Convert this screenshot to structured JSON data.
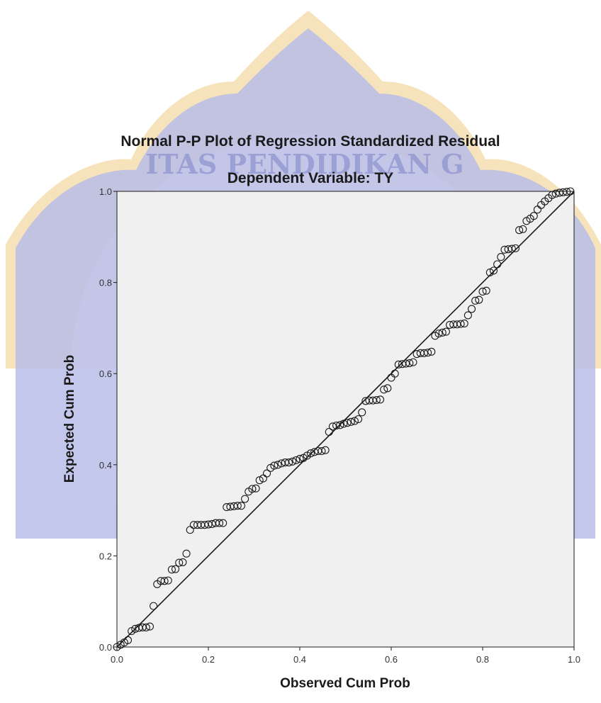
{
  "chart_data": {
    "type": "scatter",
    "title": "Normal P-P Plot of Regression Standardized Residual",
    "subtitle": "Dependent Variable: TY",
    "xlabel": "Observed Cum Prob",
    "ylabel": "Expected Cum Prob",
    "xlim": [
      0.0,
      1.0
    ],
    "ylim": [
      0.0,
      1.0
    ],
    "x_ticks": [
      "0.0",
      "0.2",
      "0.4",
      "0.6",
      "0.8",
      "1.0"
    ],
    "y_ticks": [
      "0.0",
      "0.2",
      "0.4",
      "0.6",
      "0.8",
      "1.0"
    ],
    "grid": false,
    "reference_line": {
      "from": [
        0.0,
        0.0
      ],
      "to": [
        1.0,
        1.0
      ]
    },
    "points": [
      [
        0.0,
        0.0
      ],
      [
        0.008,
        0.005
      ],
      [
        0.016,
        0.01
      ],
      [
        0.024,
        0.015
      ],
      [
        0.032,
        0.035
      ],
      [
        0.04,
        0.04
      ],
      [
        0.048,
        0.042
      ],
      [
        0.056,
        0.043
      ],
      [
        0.064,
        0.043
      ],
      [
        0.072,
        0.045
      ],
      [
        0.08,
        0.09
      ],
      [
        0.088,
        0.138
      ],
      [
        0.096,
        0.145
      ],
      [
        0.104,
        0.145
      ],
      [
        0.112,
        0.146
      ],
      [
        0.12,
        0.17
      ],
      [
        0.128,
        0.171
      ],
      [
        0.136,
        0.185
      ],
      [
        0.144,
        0.186
      ],
      [
        0.152,
        0.205
      ],
      [
        0.16,
        0.257
      ],
      [
        0.168,
        0.268
      ],
      [
        0.176,
        0.268
      ],
      [
        0.184,
        0.268
      ],
      [
        0.192,
        0.268
      ],
      [
        0.2,
        0.269
      ],
      [
        0.208,
        0.27
      ],
      [
        0.216,
        0.272
      ],
      [
        0.224,
        0.272
      ],
      [
        0.232,
        0.272
      ],
      [
        0.24,
        0.307
      ],
      [
        0.248,
        0.308
      ],
      [
        0.256,
        0.309
      ],
      [
        0.264,
        0.31
      ],
      [
        0.272,
        0.31
      ],
      [
        0.28,
        0.325
      ],
      [
        0.288,
        0.341
      ],
      [
        0.296,
        0.347
      ],
      [
        0.304,
        0.348
      ],
      [
        0.312,
        0.366
      ],
      [
        0.32,
        0.37
      ],
      [
        0.328,
        0.381
      ],
      [
        0.336,
        0.393
      ],
      [
        0.344,
        0.398
      ],
      [
        0.352,
        0.4
      ],
      [
        0.36,
        0.403
      ],
      [
        0.368,
        0.405
      ],
      [
        0.376,
        0.405
      ],
      [
        0.384,
        0.407
      ],
      [
        0.392,
        0.41
      ],
      [
        0.4,
        0.413
      ],
      [
        0.408,
        0.415
      ],
      [
        0.416,
        0.42
      ],
      [
        0.424,
        0.425
      ],
      [
        0.432,
        0.428
      ],
      [
        0.44,
        0.43
      ],
      [
        0.448,
        0.43
      ],
      [
        0.456,
        0.432
      ],
      [
        0.464,
        0.472
      ],
      [
        0.472,
        0.484
      ],
      [
        0.48,
        0.486
      ],
      [
        0.488,
        0.487
      ],
      [
        0.496,
        0.49
      ],
      [
        0.504,
        0.492
      ],
      [
        0.512,
        0.494
      ],
      [
        0.52,
        0.496
      ],
      [
        0.528,
        0.5
      ],
      [
        0.536,
        0.515
      ],
      [
        0.544,
        0.54
      ],
      [
        0.552,
        0.541
      ],
      [
        0.56,
        0.541
      ],
      [
        0.568,
        0.542
      ],
      [
        0.576,
        0.543
      ],
      [
        0.584,
        0.565
      ],
      [
        0.592,
        0.568
      ],
      [
        0.6,
        0.591
      ],
      [
        0.608,
        0.6
      ],
      [
        0.616,
        0.62
      ],
      [
        0.624,
        0.621
      ],
      [
        0.632,
        0.622
      ],
      [
        0.64,
        0.623
      ],
      [
        0.648,
        0.625
      ],
      [
        0.656,
        0.643
      ],
      [
        0.664,
        0.645
      ],
      [
        0.672,
        0.645
      ],
      [
        0.68,
        0.646
      ],
      [
        0.688,
        0.648
      ],
      [
        0.696,
        0.683
      ],
      [
        0.704,
        0.688
      ],
      [
        0.712,
        0.69
      ],
      [
        0.72,
        0.692
      ],
      [
        0.728,
        0.707
      ],
      [
        0.736,
        0.708
      ],
      [
        0.744,
        0.708
      ],
      [
        0.752,
        0.709
      ],
      [
        0.76,
        0.71
      ],
      [
        0.768,
        0.728
      ],
      [
        0.776,
        0.742
      ],
      [
        0.784,
        0.76
      ],
      [
        0.792,
        0.762
      ],
      [
        0.8,
        0.78
      ],
      [
        0.808,
        0.782
      ],
      [
        0.816,
        0.822
      ],
      [
        0.824,
        0.826
      ],
      [
        0.832,
        0.84
      ],
      [
        0.84,
        0.856
      ],
      [
        0.848,
        0.872
      ],
      [
        0.856,
        0.873
      ],
      [
        0.864,
        0.874
      ],
      [
        0.872,
        0.875
      ],
      [
        0.88,
        0.915
      ],
      [
        0.888,
        0.917
      ],
      [
        0.896,
        0.935
      ],
      [
        0.904,
        0.94
      ],
      [
        0.912,
        0.946
      ],
      [
        0.92,
        0.96
      ],
      [
        0.928,
        0.97
      ],
      [
        0.936,
        0.978
      ],
      [
        0.944,
        0.985
      ],
      [
        0.952,
        0.992
      ],
      [
        0.96,
        0.995
      ],
      [
        0.968,
        0.997
      ],
      [
        0.976,
        0.998
      ],
      [
        0.984,
        0.999
      ],
      [
        0.992,
        1.0
      ]
    ]
  },
  "colors": {
    "plot_background": "#f0f0f0",
    "marker_stroke": "#1a1a1a",
    "reference_line": "#1a1a1a",
    "watermark_blue": "#b8bde8",
    "watermark_gold": "#f3d9a6"
  },
  "watermark": {
    "kind": "university-seal",
    "lettering": "ITAS PENDIDIKAN G"
  }
}
